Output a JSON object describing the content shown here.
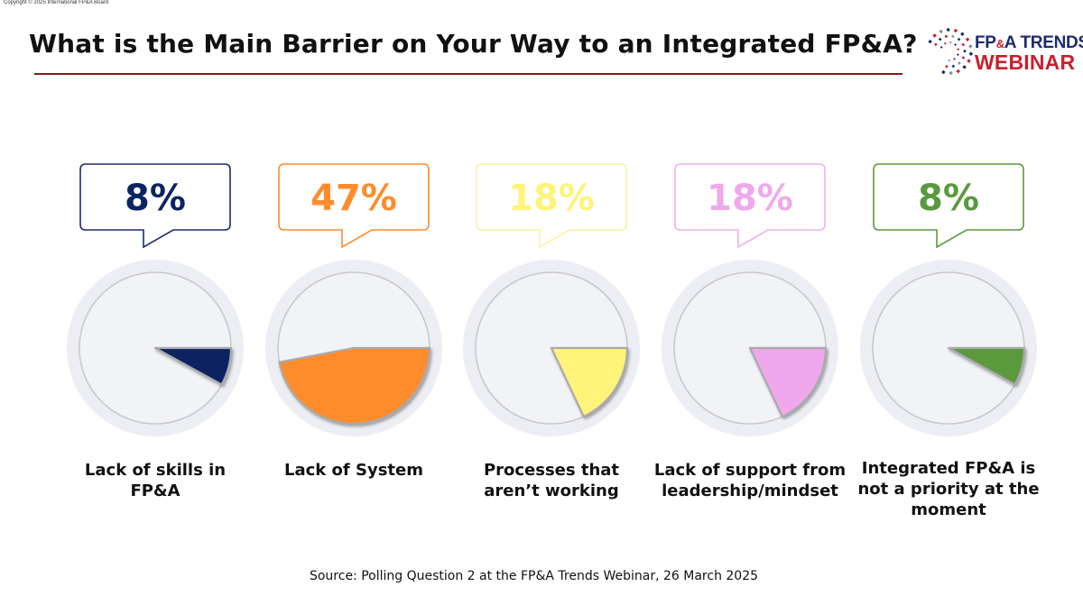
{
  "copyright": "Copyright © 2025 International FP&A Board",
  "logo": {
    "line1_a": "FP",
    "line1_amp": "&",
    "line1_b": "A TRENDS",
    "line2": "WEBINAR",
    "icon": "circular-dots-logo-icon"
  },
  "chart_data": {
    "type": "pie",
    "title": "What is the Main Barrier on Your Way to an Integrated FP&A?",
    "categories": [
      "Lack of skills in FP&A",
      "Lack of System",
      "Processes that aren’t working",
      "Lack of support from leadership/mindset",
      "Integrated FP&A is not a priority at the moment"
    ],
    "values": [
      8,
      47,
      18,
      18,
      8
    ],
    "value_labels": [
      "8%",
      "47%",
      "18%",
      "18%",
      "8%"
    ],
    "label_lines": [
      [
        "Lack of skills in",
        "FP&A"
      ],
      [
        "Lack of System"
      ],
      [
        "Processes that",
        "aren’t working"
      ],
      [
        "Lack of support from",
        "leadership/mindset"
      ],
      [
        "Integrated FP&A is",
        "not a priority at the",
        "moment"
      ]
    ],
    "colors": [
      "#0c2461",
      "#ff8c2b",
      "#fff37a",
      "#f0a8ec",
      "#5a9a3e"
    ],
    "value_text_colors": [
      "#0c2461",
      "#ff8c2b",
      "#fff37a",
      "#f0a8ec",
      "#5a9a3e"
    ],
    "bubble_border_colors": [
      "#1d2b6b",
      "#ff8c2b",
      "#fff1a0",
      "#f0b0ec",
      "#5a9a3e"
    ],
    "slice_start": "3 o'clock, clockwise"
  },
  "source": "Source: Polling Question 2 at the FP&A Trends Webinar, 26 March 2025"
}
